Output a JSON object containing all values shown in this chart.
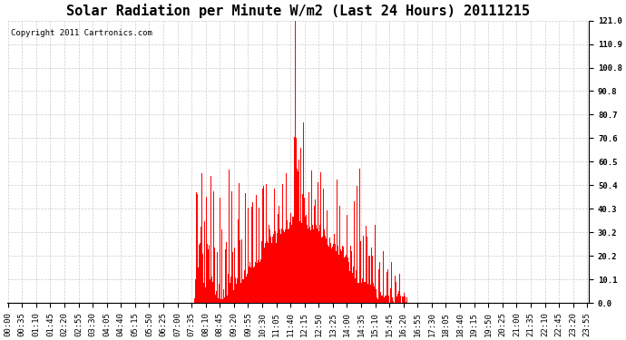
{
  "title": "Solar Radiation per Minute W/m2 (Last 24 Hours) 20111215",
  "copyright": "Copyright 2011 Cartronics.com",
  "yticks": [
    0.0,
    10.1,
    20.2,
    30.2,
    40.3,
    50.4,
    60.5,
    70.6,
    80.7,
    90.8,
    100.8,
    110.9,
    121.0
  ],
  "ymin": 0.0,
  "ymax": 121.0,
  "bar_color": "#FF0000",
  "bg_color": "#FFFFFF",
  "plot_bg_color": "#FFFFFF",
  "grid_color": "#CCCCCC",
  "dashed_line_color": "#FF0000",
  "x_labels": [
    "00:00",
    "00:35",
    "01:10",
    "01:45",
    "02:20",
    "02:55",
    "03:30",
    "04:05",
    "04:40",
    "05:15",
    "05:50",
    "06:25",
    "07:00",
    "07:35",
    "08:10",
    "08:45",
    "09:20",
    "09:55",
    "10:30",
    "11:05",
    "11:40",
    "12:15",
    "12:50",
    "13:25",
    "14:00",
    "14:35",
    "15:10",
    "15:45",
    "16:20",
    "16:55",
    "17:30",
    "18:05",
    "18:40",
    "19:15",
    "19:50",
    "20:25",
    "21:00",
    "21:35",
    "22:10",
    "22:45",
    "23:20",
    "23:55"
  ],
  "n_minutes": 1440,
  "sunrise_minute": 460,
  "sunset_minute": 990,
  "title_fontsize": 11,
  "tick_fontsize": 6.5,
  "copyright_fontsize": 6.5
}
